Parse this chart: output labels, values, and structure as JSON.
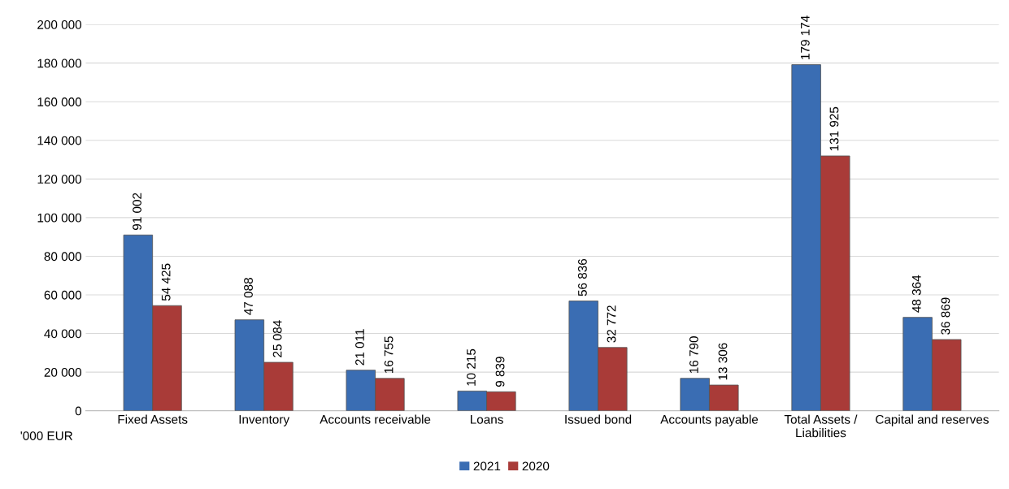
{
  "chart_data": {
    "type": "bar",
    "categories": [
      "Fixed Assets",
      "Inventory",
      "Accounts receivable",
      "Loans",
      "Issued bond",
      "Accounts payable",
      "Total Assets /\nLiabilities",
      "Capital and reserves"
    ],
    "series": [
      {
        "name": "2021",
        "color": "#3a6db3",
        "values": [
          91002,
          47088,
          21011,
          10215,
          56836,
          16790,
          179174,
          48364
        ],
        "value_labels": [
          "91 002",
          "47 088",
          "21 011",
          "10 215",
          "56 836",
          "16 790",
          "179 174",
          "48 364"
        ]
      },
      {
        "name": "2020",
        "color": "#a93b38",
        "values": [
          54425,
          25084,
          16755,
          9839,
          32772,
          13306,
          131925,
          36869
        ],
        "value_labels": [
          "54 425",
          "25 084",
          "16 755",
          "9 839",
          "32 772",
          "13 306",
          "131 925",
          "36 869"
        ]
      }
    ],
    "ylim": [
      0,
      200000
    ],
    "yticks": [
      0,
      {
        "value": 20000,
        "label": "20 000"
      },
      {
        "value": 40000,
        "label": "40 000"
      },
      {
        "value": 60000,
        "label": "60 000"
      },
      {
        "value": 80000,
        "label": "80 000"
      },
      {
        "value": 100000,
        "label": "100 000"
      },
      {
        "value": 120000,
        "label": "120 000"
      },
      {
        "value": 140000,
        "label": "140 000"
      },
      {
        "value": 160000,
        "label": "160 000"
      },
      {
        "value": 180000,
        "label": "180 000"
      },
      {
        "value": 200000,
        "label": "200 000"
      }
    ],
    "annotations": [
      "'000 EUR"
    ],
    "grid": "y",
    "legend": "bottom"
  }
}
